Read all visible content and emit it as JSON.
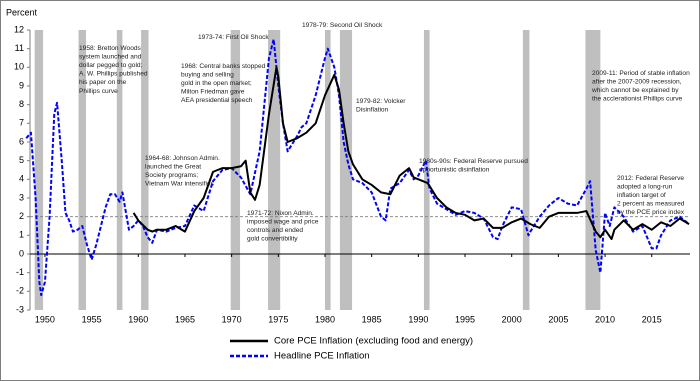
{
  "chart_data": {
    "type": "line",
    "y_label": "Percent",
    "xlim": [
      1948.4,
      2019.1
    ],
    "ylim": [
      -3,
      12
    ],
    "xticks": [
      1950,
      1955,
      1960,
      1965,
      1970,
      1975,
      1980,
      1985,
      1990,
      1995,
      2000,
      2005,
      2010,
      2015
    ],
    "yticks": [
      -3,
      -2,
      -1,
      0,
      1,
      2,
      3,
      4,
      5,
      6,
      7,
      8,
      9,
      10,
      11,
      12
    ],
    "reference_line": 2,
    "recession_color": "#bfbfbf",
    "recessions": [
      [
        1948.9,
        1949.8
      ],
      [
        1953.6,
        1954.4
      ],
      [
        1957.7,
        1958.3
      ],
      [
        1960.3,
        1961.1
      ],
      [
        1969.9,
        1970.9
      ],
      [
        1973.9,
        1975.2
      ],
      [
        1980.0,
        1980.6
      ],
      [
        1981.6,
        1982.9
      ],
      [
        1990.6,
        1991.2
      ],
      [
        2001.2,
        2001.9
      ],
      [
        2007.9,
        2009.5
      ]
    ],
    "series": [
      {
        "name": "Core PCE Inflation (excluding food and energy)",
        "color": "#000000",
        "dash": false,
        "x": [
          1959.5,
          1960,
          1961,
          1961.5,
          1962,
          1963,
          1964,
          1965,
          1966,
          1967,
          1968,
          1969,
          1970,
          1971,
          1971.5,
          1972,
          1972.5,
          1973,
          1974,
          1974.8,
          1975,
          1975.5,
          1976,
          1977,
          1978,
          1979,
          1980,
          1981,
          1981.5,
          1982,
          1982.5,
          1983,
          1984,
          1985,
          1986,
          1987,
          1988,
          1989,
          1989.5,
          1990,
          1991,
          1992,
          1993,
          1994,
          1995,
          1996,
          1997,
          1998,
          1999,
          2000,
          2001,
          2002,
          2003,
          2004,
          2005,
          2006,
          2007,
          2008,
          2009,
          2009.5,
          2010,
          2010.7,
          2011,
          2012,
          2013,
          2014,
          2015,
          2016,
          2017,
          2018,
          2019
        ],
        "values": [
          2.2,
          1.8,
          1.3,
          1.2,
          1.3,
          1.3,
          1.5,
          1.2,
          2.3,
          3.0,
          4.4,
          4.6,
          4.6,
          4.7,
          5.0,
          3.3,
          2.9,
          3.7,
          7.5,
          10,
          9.5,
          7,
          6,
          6.2,
          6.5,
          7.0,
          8.5,
          9.6,
          8.8,
          7,
          5.5,
          4.8,
          4.0,
          3.7,
          3.3,
          3.2,
          4.2,
          4.6,
          4.1,
          4.0,
          3.8,
          3.0,
          2.5,
          2.2,
          2.1,
          1.8,
          1.9,
          1.4,
          1.4,
          1.7,
          1.9,
          1.6,
          1.4,
          2.0,
          2.2,
          2.2,
          2.2,
          2.3,
          1.2,
          0.9,
          1.3,
          0.8,
          1.3,
          1.8,
          1.3,
          1.6,
          1.3,
          1.7,
          1.5,
          1.9,
          1.6
        ]
      },
      {
        "name": "Headline PCE Inflation",
        "color": "#0000ff",
        "dash": true,
        "x": [
          1948,
          1948.5,
          1949,
          1949.4,
          1949.6,
          1950,
          1950.5,
          1951,
          1951.3,
          1951.8,
          1952.2,
          1952.6,
          1953,
          1953.5,
          1954,
          1954.5,
          1955,
          1955.5,
          1956,
          1956.5,
          1957,
          1957.5,
          1958,
          1958.3,
          1959,
          1959.5,
          1960,
          1960.5,
          1961,
          1961.5,
          1962,
          1963,
          1964,
          1965,
          1966,
          1967,
          1968,
          1969,
          1970,
          1971,
          1972,
          1973,
          1974,
          1974.5,
          1975,
          1975.5,
          1976,
          1977,
          1977.5,
          1978,
          1979,
          1980,
          1980.3,
          1981,
          1981.5,
          1982,
          1982.5,
          1983,
          1984,
          1985,
          1986,
          1986.5,
          1987,
          1988,
          1989,
          1989.5,
          1990,
          1990.8,
          1991.2,
          1992,
          1993,
          1994,
          1995,
          1996,
          1997,
          1998,
          1998.5,
          1999,
          2000,
          2001,
          2001.8,
          2002,
          2003,
          2004,
          2005,
          2006,
          2007,
          2008,
          2008.4,
          2009,
          2009.5,
          2010,
          2010.5,
          2011,
          2012,
          2013,
          2014,
          2015,
          2015.5,
          2016,
          2017,
          2018,
          2019
        ],
        "values": [
          6.2,
          6.5,
          3,
          -1.5,
          -2.2,
          -1.5,
          2,
          7.5,
          8.1,
          5,
          2.2,
          1.8,
          1.2,
          1.3,
          1.5,
          0.5,
          -0.3,
          0.5,
          1.5,
          2.5,
          3.2,
          3.2,
          2.8,
          3.3,
          1.3,
          1.5,
          1.8,
          1.5,
          0.9,
          0.6,
          1.3,
          1.2,
          1.4,
          1.5,
          2.6,
          2.3,
          3.9,
          4.5,
          4.6,
          4.1,
          3.2,
          5.5,
          10.5,
          11.5,
          9,
          7,
          5.5,
          6.3,
          6.8,
          7,
          8.5,
          10.5,
          11,
          10,
          8.5,
          6,
          4.8,
          4,
          3.8,
          3.3,
          2,
          1.8,
          3.5,
          3.8,
          4.5,
          4,
          4.2,
          5,
          3.5,
          2.7,
          2.4,
          2.1,
          2.3,
          2.2,
          1.9,
          0.9,
          0.8,
          1.5,
          2.5,
          2.4,
          1.0,
          1.2,
          2.0,
          2.6,
          3.0,
          2.7,
          2.6,
          3.5,
          3.9,
          0.2,
          -1,
          2.2,
          1.5,
          2.5,
          2.0,
          1.2,
          1.5,
          0.3,
          0.3,
          1.0,
          1.8,
          2.0,
          1.6
        ]
      }
    ],
    "annotations": [
      [
        "1958: Bretton Woods",
        "system launched and",
        "dollar pegged to gold;",
        "A. W. Phillips published",
        "his paper on the",
        "Phillips curve"
      ],
      [
        "1964-68: Johnson Admin.",
        "launched the Great",
        "Society programs;",
        "Vietnam War intensifies"
      ],
      [
        "1973-74: First Oil Shock"
      ],
      [
        "1968: Central banks stopped",
        "buying and selling",
        "gold in the open market;",
        "Milton Friedman gave",
        "AEA presidential speech"
      ],
      [
        "1978-79: Second Oil Shock"
      ],
      [
        "1979-82: Volcker",
        "Disinflation"
      ],
      [
        "1980s-90s: Federal Reserve pursued",
        "opportunistic disinflation"
      ],
      [
        "1971-72: Nixon Admin.",
        "imposed wage and price",
        "controls and ended",
        "gold convertibility"
      ],
      [
        "2009-11: Period of stable inflation",
        "after the 2007-2009 recession,",
        "which cannot be explained by",
        "the acclerationist Phillips curve"
      ],
      [
        "2012: Federal Reserve",
        "adopted a long-run",
        "inflation target of",
        "2 percent as measured",
        "by the PCE price index"
      ]
    ]
  }
}
